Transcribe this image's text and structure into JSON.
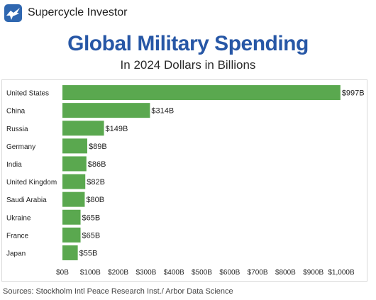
{
  "brand": {
    "name": "Supercycle Investor",
    "logo_icon": "eagle-logo-icon",
    "logo_color": "#2f67b0"
  },
  "title": "Global Military Spending",
  "subtitle": "In 2024 Dollars in Billions",
  "source": "Sources: Stockholm Intl Peace Research Inst./ Arbor Data Science",
  "colors": {
    "title": "#2757a6",
    "bar": "#5aa84f"
  },
  "chart_data": {
    "type": "bar",
    "orientation": "horizontal",
    "categories": [
      "United States",
      "China",
      "Russia",
      "Germany",
      "India",
      "United Kingdom",
      "Saudi Arabia",
      "Ukraine",
      "France",
      "Japan"
    ],
    "values": [
      997,
      314,
      149,
      89,
      86,
      82,
      80,
      65,
      65,
      55
    ],
    "data_labels": [
      "$997B",
      "$314B",
      "$149B",
      "$89B",
      "$86B",
      "$82B",
      "$80B",
      "$65B",
      "$65B",
      "$55B"
    ],
    "xlim": [
      0,
      1000
    ],
    "x_ticks": [
      0,
      100,
      200,
      300,
      400,
      500,
      600,
      700,
      800,
      900,
      1000
    ],
    "x_tick_labels": [
      "$0B",
      "$100B",
      "$200B",
      "$300B",
      "$400B",
      "$500B",
      "$600B",
      "$700B",
      "$800B",
      "$900B",
      "$1,000B"
    ],
    "grid": false,
    "legend": "none"
  }
}
